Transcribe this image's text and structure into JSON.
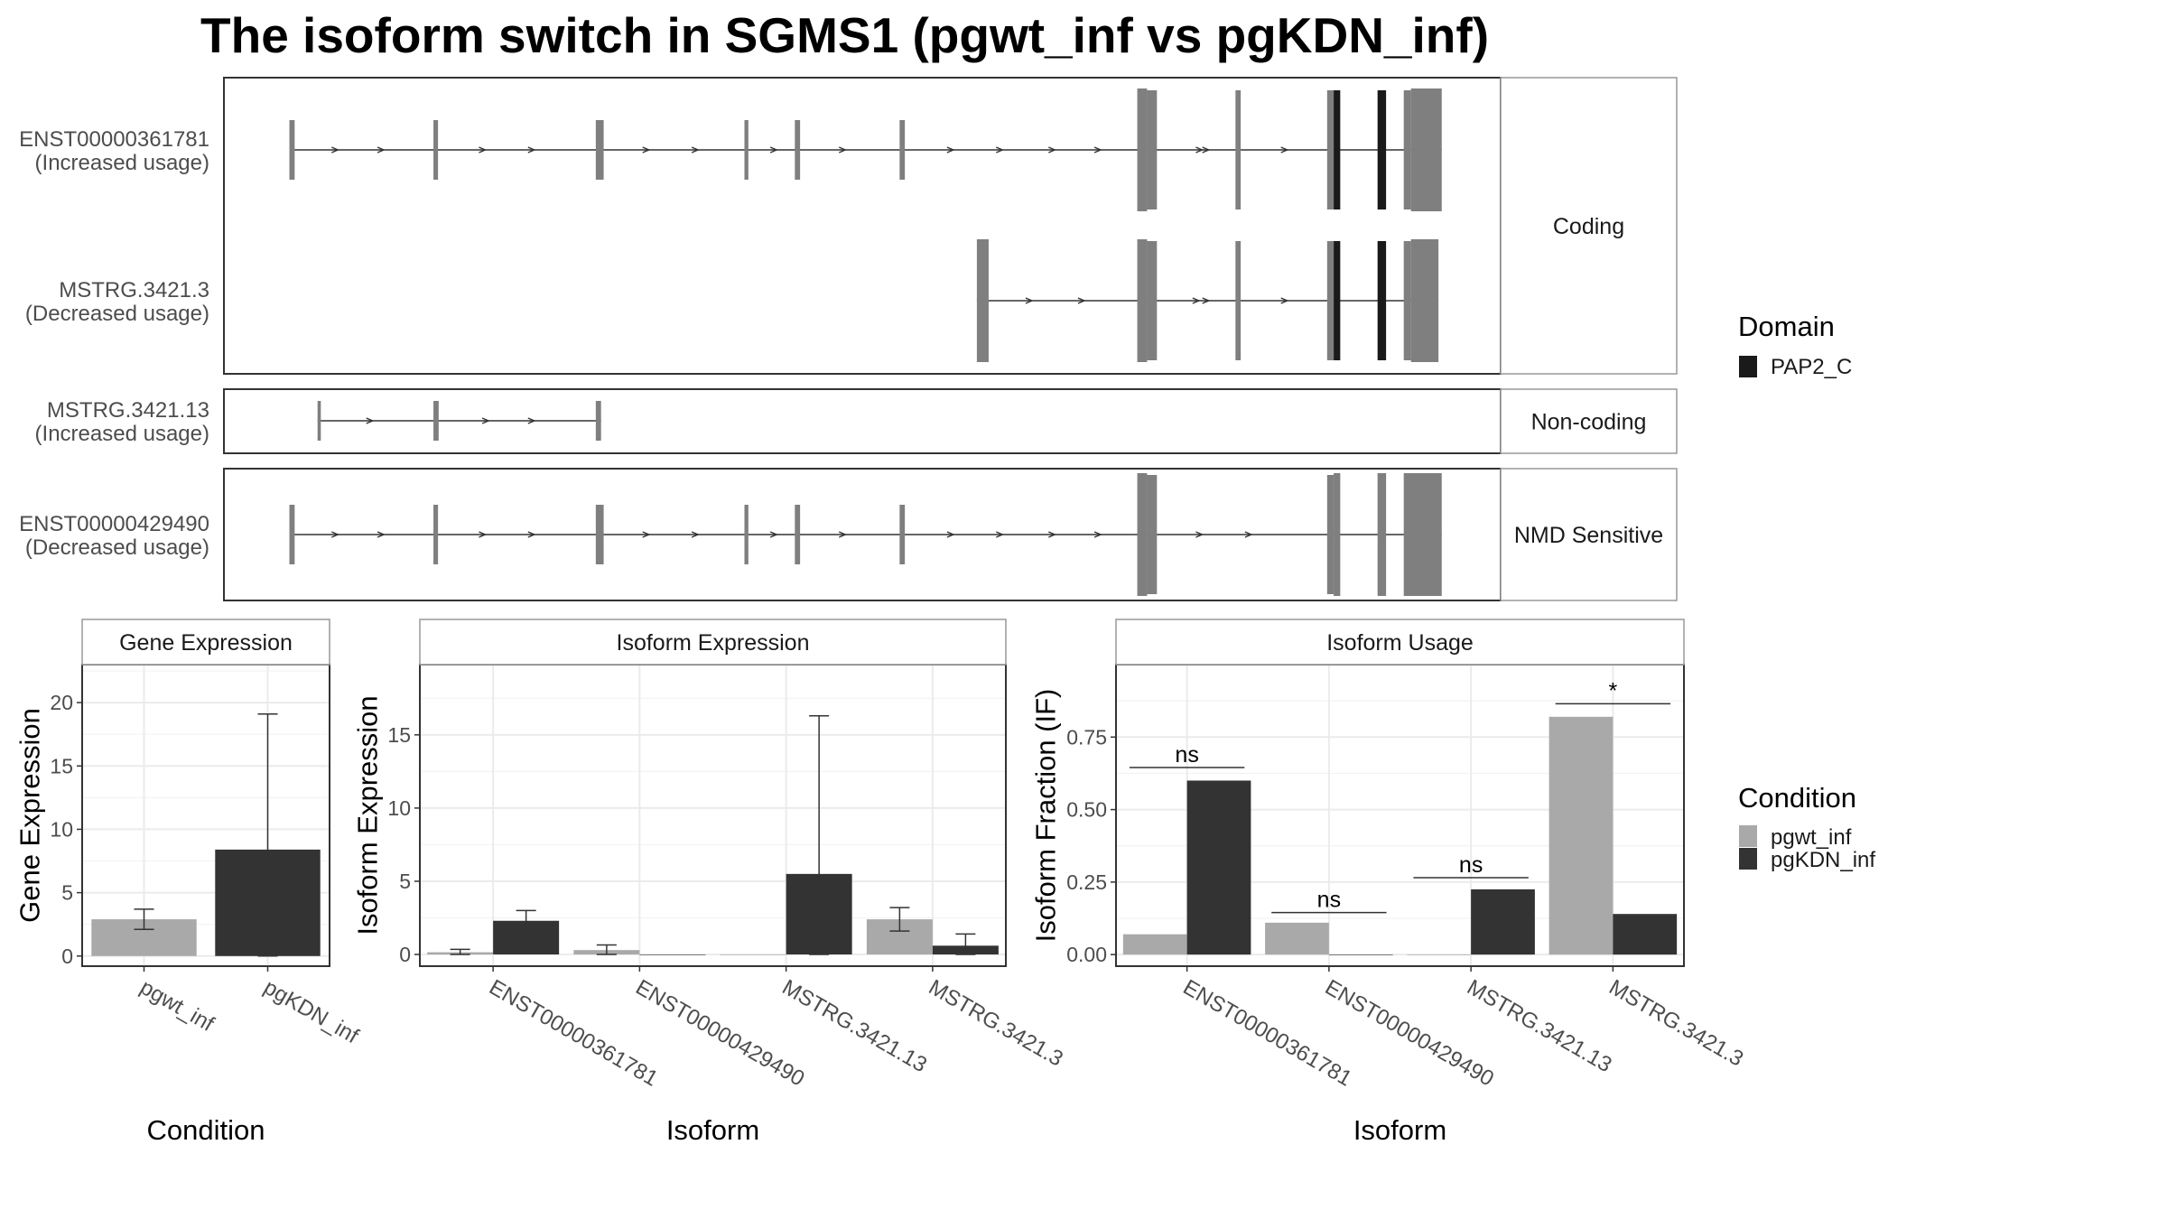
{
  "title": "The isoform switch in SGMS1 (pgwt_inf vs pgKDN_inf)",
  "colors": {
    "exon": "#7f7f7f",
    "domain": "#1a1a1a",
    "pgwt_inf": "#a9a9a9",
    "pgKDN_inf": "#333333",
    "grid": "#ebebeb",
    "strip_bg": "#ffffff",
    "border": "#333333"
  },
  "structure": {
    "facets": [
      {
        "label": "Coding",
        "rows": [
          {
            "id": "ENST00000361781",
            "usage": "(Increased usage)",
            "exons": [
              [
                1000,
                1080,
                "s"
              ],
              [
                3200,
                3270,
                "s"
              ],
              [
                5680,
                5800,
                "s"
              ],
              [
                7950,
                8010,
                "s"
              ],
              [
                8720,
                8800,
                "s"
              ],
              [
                10320,
                10400,
                "s"
              ],
              [
                13950,
                14100,
                "m"
              ],
              [
                14100,
                14250,
                "t"
              ],
              [
                15450,
                15530,
                "t"
              ],
              [
                16850,
                16950,
                "t"
              ],
              [
                16950,
                17050,
                "d"
              ],
              [
                17620,
                17750,
                "d"
              ],
              [
                18020,
                18130,
                "t"
              ],
              [
                18130,
                18600,
                "m"
              ]
            ],
            "arrows": [
              1700,
              2400,
              3950,
              4700,
              6450,
              7200,
              8400,
              9450,
              11100,
              11850,
              12650,
              13350,
              14900,
              15000,
              16200
            ]
          },
          {
            "id": "MSTRG.3421.3",
            "usage": "(Decreased usage)",
            "exons": [
              [
                11500,
                11680,
                "m"
              ],
              [
                13950,
                14100,
                "m"
              ],
              [
                14100,
                14250,
                "t"
              ],
              [
                15450,
                15530,
                "t"
              ],
              [
                16850,
                16950,
                "t"
              ],
              [
                16950,
                17050,
                "d"
              ],
              [
                17620,
                17750,
                "d"
              ],
              [
                18020,
                18130,
                "t"
              ],
              [
                18130,
                18550,
                "m"
              ]
            ],
            "arrows": [
              12300,
              13100,
              14850,
              15000,
              16200
            ]
          }
        ]
      },
      {
        "label": "Non-coding",
        "rows": [
          {
            "id": "MSTRG.3421.13",
            "usage": "(Increased usage)",
            "exons": [
              [
                1430,
                1480,
                "t"
              ],
              [
                3200,
                3280,
                "t"
              ],
              [
                5680,
                5760,
                "t"
              ]
            ],
            "arrows": [
              2230,
              4000,
              4700
            ]
          }
        ]
      },
      {
        "label": "NMD Sensitive",
        "rows": [
          {
            "id": "ENST00000429490",
            "usage": "(Decreased usage)",
            "exons": [
              [
                1000,
                1080,
                "s"
              ],
              [
                3200,
                3270,
                "s"
              ],
              [
                5680,
                5800,
                "s"
              ],
              [
                7950,
                8010,
                "s"
              ],
              [
                8720,
                8800,
                "s"
              ],
              [
                10320,
                10400,
                "s"
              ],
              [
                13950,
                14100,
                "m"
              ],
              [
                14100,
                14250,
                "t"
              ],
              [
                16850,
                16950,
                "t"
              ],
              [
                16950,
                17050,
                "m"
              ],
              [
                17620,
                17750,
                "m"
              ],
              [
                18020,
                18600,
                "m"
              ]
            ],
            "arrows": [
              1700,
              2400,
              3950,
              4700,
              6450,
              7200,
              8400,
              9450,
              11100,
              11850,
              12650,
              13350,
              14900,
              15650
            ]
          }
        ]
      }
    ],
    "legend": {
      "title": "Domain",
      "items": [
        {
          "label": "PAP2_C",
          "color": "#1a1a1a"
        }
      ]
    }
  },
  "chart_data": [
    {
      "type": "bar",
      "title": "Gene Expression",
      "xlabel": "Condition",
      "ylabel": "Gene Expression",
      "ylim": [
        -0.8,
        23
      ],
      "yticks": [
        0,
        5,
        10,
        15,
        20
      ],
      "categories": [
        "pgwt_inf",
        "pgKDN_inf"
      ],
      "series": [
        {
          "name": "pgwt_inf",
          "values": [
            2.9,
            null
          ],
          "err_low": [
            2.1,
            null
          ],
          "err_high": [
            3.7,
            null
          ]
        },
        {
          "name": "pgKDN_inf",
          "values": [
            null,
            8.4
          ],
          "err_low": [
            null,
            0.0
          ],
          "err_high": [
            null,
            19.1
          ]
        }
      ]
    },
    {
      "type": "bar",
      "title": "Isoform Expression",
      "xlabel": "Isoform",
      "ylabel": "Isoform Expression",
      "ylim": [
        -0.8,
        19.8
      ],
      "yticks": [
        0,
        5,
        10,
        15
      ],
      "categories": [
        "ENST00000361781",
        "ENST00000429490",
        "MSTRG.3421.13",
        "MSTRG.3421.3"
      ],
      "series": [
        {
          "name": "pgwt_inf",
          "values": [
            0.15,
            0.3,
            0.0,
            2.4
          ],
          "err_low": [
            0.0,
            0.0,
            null,
            1.6
          ],
          "err_high": [
            0.35,
            0.65,
            null,
            3.2
          ]
        },
        {
          "name": "pgKDN_inf",
          "values": [
            2.3,
            0.0,
            5.5,
            0.6
          ],
          "err_low": [
            1.6,
            null,
            0.0,
            0.0
          ],
          "err_high": [
            3.0,
            null,
            16.3,
            1.4
          ]
        }
      ]
    },
    {
      "type": "bar",
      "title": "Isoform Usage",
      "xlabel": "Isoform",
      "ylabel": "Isoform Fraction (IF)",
      "ylim": [
        -0.04,
        1.0
      ],
      "yticks": [
        0.0,
        0.25,
        0.5,
        0.75
      ],
      "ytick_labels": [
        "0.00",
        "0.25",
        "0.50",
        "0.75"
      ],
      "categories": [
        "ENST00000361781",
        "ENST00000429490",
        "MSTRG.3421.13",
        "MSTRG.3421.3"
      ],
      "series": [
        {
          "name": "pgwt_inf",
          "values": [
            0.07,
            0.11,
            0.0,
            0.82
          ]
        },
        {
          "name": "pgKDN_inf",
          "values": [
            0.6,
            0.0,
            0.225,
            0.14
          ]
        }
      ],
      "significance": [
        {
          "label": "ns",
          "y": 0.645
        },
        {
          "label": "ns",
          "y": 0.145
        },
        {
          "label": "ns",
          "y": 0.265
        },
        {
          "label": "*",
          "y": 0.865
        }
      ]
    }
  ],
  "condition_legend": {
    "title": "Condition",
    "items": [
      {
        "label": "pgwt_inf",
        "color": "#a9a9a9"
      },
      {
        "label": "pgKDN_inf",
        "color": "#333333"
      }
    ]
  }
}
